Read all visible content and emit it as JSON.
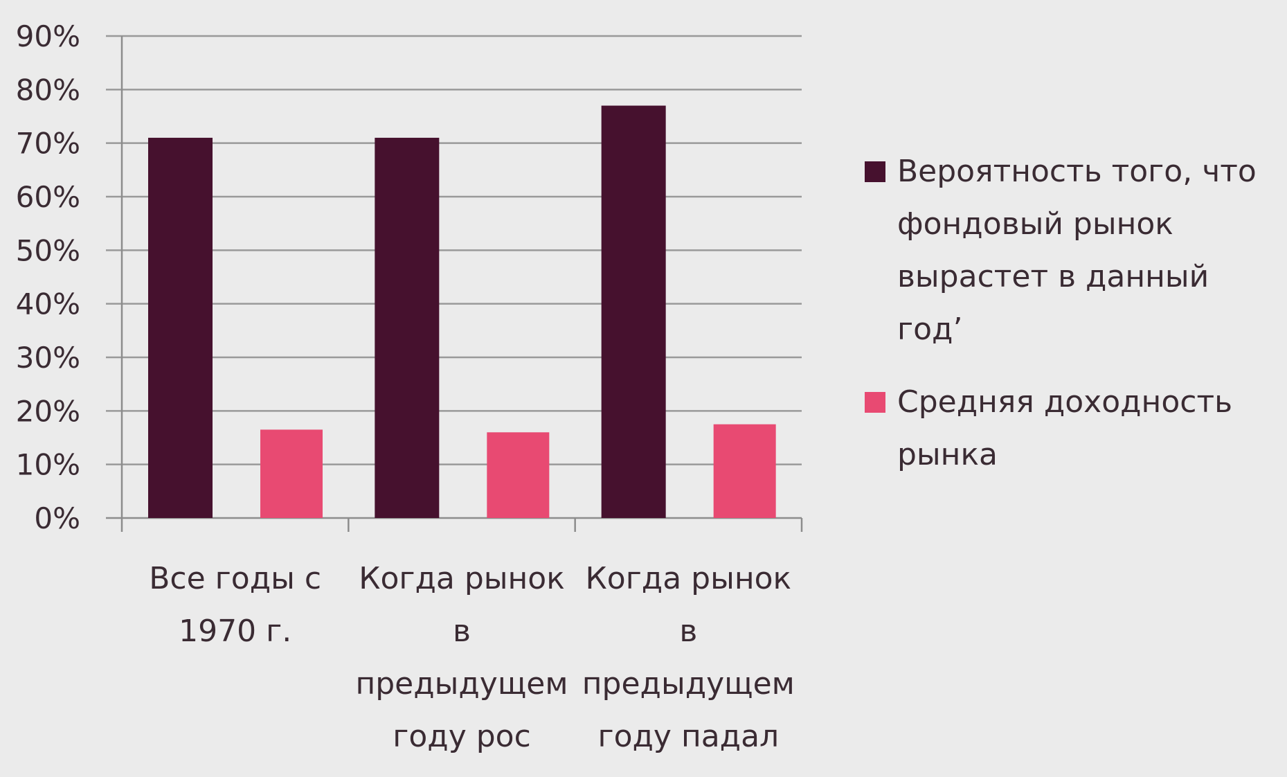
{
  "chart_data": {
    "type": "bar",
    "categories": [
      [
        "Все годы с",
        "1970 г."
      ],
      [
        "Когда рынок",
        "в",
        "предыдущем",
        "году рос"
      ],
      [
        "Когда рынок",
        "в",
        "предыдущем",
        "году падал"
      ]
    ],
    "series": [
      {
        "name": [
          "Вероятность того, что",
          "фондовый рынок",
          "вырастет в данный",
          "год’"
        ],
        "values": [
          71,
          71,
          77
        ],
        "color": "#46112e"
      },
      {
        "name": [
          "Средняя доходность",
          "рынка"
        ],
        "values": [
          16.5,
          16,
          17.5
        ],
        "color": "#e84a72"
      }
    ],
    "y_ticks": [
      "0%",
      "10%",
      "20%",
      "30%",
      "40%",
      "50%",
      "60%",
      "70%",
      "80%",
      "90%"
    ],
    "ylim": [
      0,
      90
    ],
    "grid": true,
    "legend_position": "right",
    "colors": {
      "background": "#ebebeb",
      "grid": "#999999",
      "axis": "#8c8c8c"
    }
  }
}
